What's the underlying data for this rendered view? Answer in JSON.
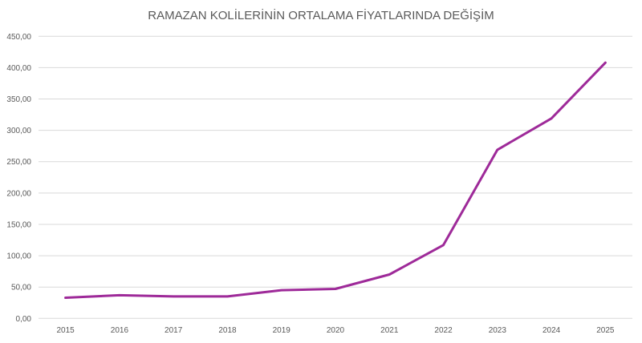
{
  "chart_data": {
    "type": "line",
    "title": "RAMAZAN KOLİLERİNİN ORTALAMA FİYATLARINDA DEĞİŞİM",
    "xlabel": "",
    "ylabel": "",
    "categories": [
      "2015",
      "2016",
      "2017",
      "2018",
      "2019",
      "2020",
      "2021",
      "2022",
      "2023",
      "2024",
      "2025"
    ],
    "series": [
      {
        "values": [
          33,
          37,
          35,
          35,
          45,
          47,
          70,
          117,
          269,
          319,
          408
        ],
        "color": "#9E2A99"
      }
    ],
    "ylim": [
      0,
      450
    ],
    "yticks": [
      0,
      50,
      100,
      150,
      200,
      250,
      300,
      350,
      400,
      450
    ],
    "ytick_labels": [
      "0,00",
      "50,00",
      "100,00",
      "150,00",
      "200,00",
      "250,00",
      "300,00",
      "350,00",
      "400,00",
      "450,00"
    ],
    "grid": true,
    "legend": "none",
    "colors": {
      "line": "#9E2A99",
      "grid": "#D9D9D9",
      "text": "#595959"
    }
  }
}
